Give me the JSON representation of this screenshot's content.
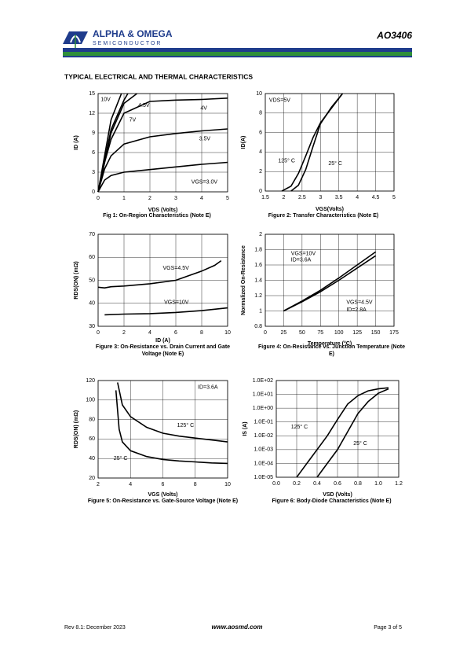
{
  "header": {
    "company": "ALPHA & OMEGA",
    "division": "SEMICONDUCTOR",
    "part": "AO3406"
  },
  "section_title": "TYPICAL ELECTRICAL AND THERMAL CHARACTERISTICS",
  "footer": {
    "revision": "Rev 8.1: December 2023",
    "website": "www.aosmd.com",
    "page": "Page 3 of 5"
  },
  "chart_data": [
    {
      "type": "line",
      "caption": "Fig 1: On-Region Characteristics (Note E)",
      "x_label": "VDS (Volts)",
      "y_label": "ID (A)",
      "xlim": [
        0,
        5
      ],
      "xticks": [
        0,
        1,
        2,
        3,
        4,
        5
      ],
      "ylim": [
        0,
        15
      ],
      "yticks": [
        0,
        3,
        6,
        9,
        12,
        15
      ],
      "grid": true,
      "series": [
        {
          "name": "10V",
          "color": "#000000",
          "x": [
            0,
            0.5,
            0.9
          ],
          "values": [
            0,
            11,
            15
          ]
        },
        {
          "name": "7V",
          "color": "#000000",
          "x": [
            0,
            0.5,
            1,
            1.15
          ],
          "values": [
            0,
            9.5,
            14,
            15
          ]
        },
        {
          "name": "4.5V",
          "color": "#000000",
          "x": [
            0,
            0.5,
            1,
            1.5
          ],
          "values": [
            0,
            9,
            13.5,
            15
          ]
        },
        {
          "name": "4V",
          "color": "#000000",
          "x": [
            0,
            0.25,
            0.5,
            1,
            2,
            3,
            4,
            5
          ],
          "values": [
            0,
            4.5,
            8,
            12,
            13.8,
            14,
            14.1,
            14.3
          ]
        },
        {
          "name": "3.5V",
          "color": "#000000",
          "x": [
            0,
            0.25,
            0.5,
            1,
            2,
            3,
            4,
            5
          ],
          "values": [
            0,
            3.5,
            5.5,
            7.3,
            8.4,
            8.9,
            9.3,
            9.6
          ]
        },
        {
          "name": "VGS=3.0V",
          "color": "#000000",
          "x": [
            0,
            0.25,
            0.5,
            1,
            2,
            3,
            4,
            5
          ],
          "values": [
            0,
            1.8,
            2.5,
            3,
            3.4,
            3.8,
            4.2,
            4.5
          ]
        }
      ]
    },
    {
      "type": "line",
      "caption": "Figure 2: Transfer Characteristics (Note E)",
      "x_label": "VGS(Volts)",
      "y_label": "ID(A)",
      "xlim": [
        1.5,
        5
      ],
      "xticks": [
        1.5,
        2,
        2.5,
        3,
        3.5,
        4,
        4.5,
        5
      ],
      "ylim": [
        0,
        10
      ],
      "yticks": [
        0,
        2,
        4,
        6,
        8,
        10
      ],
      "grid": true,
      "annotations": [
        "VDS=5V"
      ],
      "series": [
        {
          "name": "125° C",
          "color": "#000000",
          "x": [
            1.95,
            2.2,
            2.4,
            2.6,
            2.8,
            3,
            3.3,
            3.6
          ],
          "values": [
            0,
            0.5,
            1.8,
            3.6,
            5.5,
            7,
            8.5,
            10
          ]
        },
        {
          "name": "25° C",
          "color": "#000000",
          "x": [
            2.2,
            2.4,
            2.6,
            2.8,
            3,
            3.3,
            3.6
          ],
          "values": [
            0,
            0.6,
            2.2,
            4.6,
            6.9,
            8.6,
            10
          ]
        }
      ]
    },
    {
      "type": "line",
      "caption": "Figure 3: On-Resistance vs. Drain Current and Gate Voltage (Note E)",
      "x_label": "ID (A)",
      "y_label": "RDS(ON) (mΩ)",
      "xlim": [
        0,
        10
      ],
      "xticks": [
        0,
        2,
        4,
        6,
        8,
        10
      ],
      "ylim": [
        30,
        70
      ],
      "yticks": [
        30,
        40,
        50,
        60,
        70
      ],
      "grid": true,
      "series": [
        {
          "name": "VGS=4.5V",
          "color": "#000000",
          "x": [
            0,
            0.5,
            1,
            2,
            4,
            6,
            7,
            8,
            9,
            9.5
          ],
          "values": [
            47,
            46.7,
            47.2,
            47.5,
            48.5,
            50,
            52,
            54,
            56.5,
            58.5
          ]
        },
        {
          "name": "VGS=10V",
          "color": "#000000",
          "x": [
            0.5,
            2,
            4,
            6,
            8,
            10
          ],
          "values": [
            35,
            35.3,
            35.5,
            36,
            36.8,
            38
          ]
        }
      ]
    },
    {
      "type": "line",
      "caption": "Figure 4: On-Resistance vs. Junction Temperature (Note E)",
      "x_label": "Temperature (°C)",
      "y_label": "Normalized On-Resistance",
      "xlim": [
        0,
        175
      ],
      "xticks": [
        0,
        25,
        50,
        75,
        100,
        125,
        150,
        175
      ],
      "ylim": [
        0.8,
        2
      ],
      "yticks": [
        0.8,
        1,
        1.2,
        1.4,
        1.6,
        1.8,
        2
      ],
      "grid": true,
      "annotations": [
        "ID=3.6A",
        "ID=2.8A"
      ],
      "series": [
        {
          "name": "VGS=10V",
          "color": "#000000",
          "x": [
            25,
            50,
            75,
            100,
            125,
            150
          ],
          "values": [
            1,
            1.13,
            1.27,
            1.43,
            1.6,
            1.77
          ]
        },
        {
          "name": "VGS=4.5V",
          "color": "#000000",
          "x": [
            25,
            50,
            75,
            100,
            125,
            150
          ],
          "values": [
            1,
            1.12,
            1.25,
            1.4,
            1.56,
            1.72
          ]
        }
      ]
    },
    {
      "type": "line",
      "caption": "Figure 5: On-Resistance vs. Gate-Source Voltage (Note E)",
      "x_label": "VGS (Volts)",
      "y_label": "RDS(ON) (mΩ)",
      "xlim": [
        2,
        10
      ],
      "xticks": [
        2,
        4,
        6,
        8,
        10
      ],
      "ylim": [
        20,
        120
      ],
      "yticks": [
        20,
        40,
        60,
        80,
        100,
        120
      ],
      "grid": true,
      "annotations": [
        "ID=3.6A"
      ],
      "series": [
        {
          "name": "125° C",
          "color": "#000000",
          "x": [
            3.2,
            3.5,
            4,
            5,
            6,
            7,
            8,
            9,
            10
          ],
          "values": [
            118,
            95,
            83,
            72,
            66,
            63,
            61,
            59,
            57
          ]
        },
        {
          "name": "25° C",
          "color": "#000000",
          "x": [
            3.1,
            3.3,
            3.5,
            4,
            5,
            6,
            7,
            8,
            9,
            10
          ],
          "values": [
            110,
            70,
            57,
            48,
            42,
            39,
            37.5,
            36.5,
            35.5,
            35
          ]
        }
      ]
    },
    {
      "type": "line",
      "caption": "Figure 6: Body-Diode Characteristics (Note E)",
      "x_label": "VSD (Volts)",
      "y_label": "IS (A)",
      "xlim": [
        0,
        1.2
      ],
      "xticks": [
        {
          "value": 0,
          "label": "0.0"
        },
        0.2,
        0.4,
        0.6,
        0.8,
        {
          "value": 1,
          "label": "1.0"
        },
        1.2
      ],
      "ylim": [
        1e-05,
        100
      ],
      "ylog": true,
      "grid": true,
      "yticks": [
        {
          "value": 1e-05,
          "label": "1.0E-05"
        },
        {
          "value": 0.0001,
          "label": "1.0E-04"
        },
        {
          "value": 0.001,
          "label": "1.0E-03"
        },
        {
          "value": 0.01,
          "label": "1.0E-02"
        },
        {
          "value": 0.1,
          "label": "1.0E-01"
        },
        {
          "value": 1,
          "label": "1.0E+00"
        },
        {
          "value": 10,
          "label": "1.0E+01"
        },
        {
          "value": 100,
          "label": "1.0E+02"
        }
      ],
      "series": [
        {
          "name": "125° C",
          "color": "#000000",
          "x": [
            0.2,
            0.3,
            0.4,
            0.5,
            0.6,
            0.7,
            0.8,
            0.9,
            1,
            1.1
          ],
          "values": [
            1e-05,
            0.0001,
            0.001,
            0.01,
            0.15,
            2,
            8,
            18,
            25,
            30
          ]
        },
        {
          "name": "25° C",
          "color": "#000000",
          "x": [
            0.4,
            0.5,
            0.6,
            0.7,
            0.8,
            0.9,
            1,
            1.1
          ],
          "values": [
            1e-05,
            0.0001,
            0.001,
            0.02,
            0.4,
            3,
            12,
            25
          ]
        }
      ]
    }
  ]
}
